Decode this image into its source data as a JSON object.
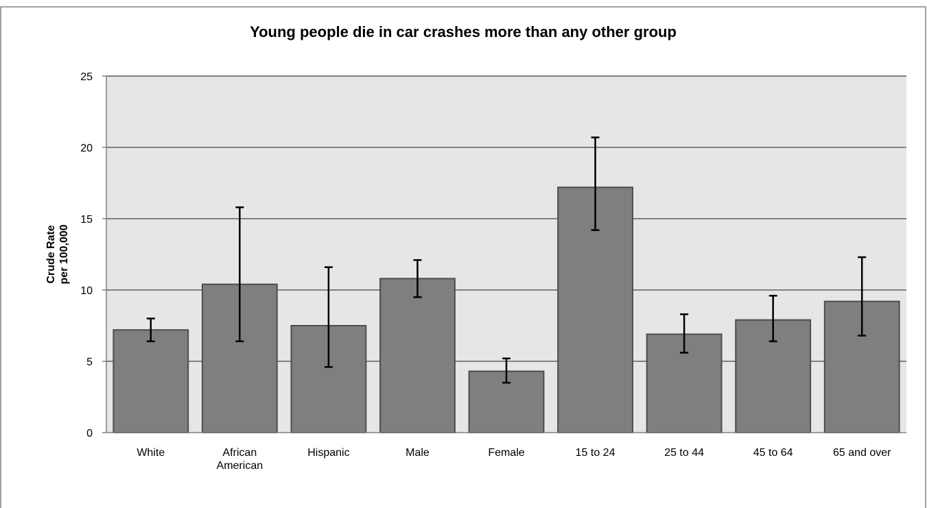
{
  "chart_data": {
    "type": "bar",
    "title": "Young people die in car crashes more than any other group",
    "ylabel": [
      "Crude Rate",
      "per 100,000"
    ],
    "xlabel": "",
    "ylim": [
      0,
      25
    ],
    "yticks": [
      0,
      5,
      10,
      15,
      20,
      25
    ],
    "grid": true,
    "legend": "none",
    "categories": [
      [
        "White"
      ],
      [
        "African",
        "American"
      ],
      [
        "Hispanic"
      ],
      [
        "Male"
      ],
      [
        "Female"
      ],
      [
        "15 to 24"
      ],
      [
        "25 to 44"
      ],
      [
        "45 to 64"
      ],
      [
        "65 and over"
      ]
    ],
    "values": [
      7.2,
      10.4,
      7.5,
      10.8,
      4.3,
      17.2,
      6.9,
      7.9,
      9.2
    ],
    "error_low": [
      6.4,
      6.4,
      4.6,
      9.5,
      3.5,
      14.2,
      5.6,
      6.4,
      6.8
    ],
    "error_high": [
      8.0,
      15.8,
      11.6,
      12.1,
      5.2,
      20.7,
      8.3,
      9.6,
      12.3
    ],
    "colors": {
      "bar_fill": "#7f7f7f",
      "bar_stroke": "#4d4d4d",
      "plot_bg": "#e6e6e6",
      "gridline": "#808080",
      "error_bar": "#000000",
      "frame": "#808080"
    }
  }
}
